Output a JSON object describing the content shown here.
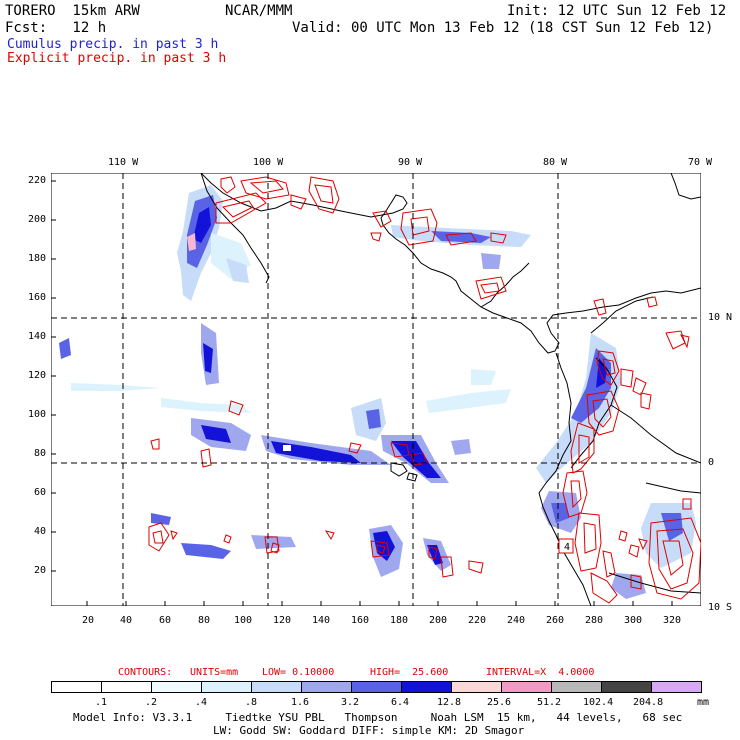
{
  "header": {
    "model": "TORERO  15km ARW",
    "org": "NCAR/MMM",
    "init": "Init: 12 UTC Sun 12 Feb 12",
    "fcst": "Fcst:   12 h",
    "valid": "Valid: 00 UTC Mon 13 Feb 12 (18 CST Sun 12 Feb 12)",
    "line_cumulus": "Cumulus precip. in past 3 h",
    "line_explicit": "Explicit precip. in past 3 h"
  },
  "colors": {
    "cumulus": "#1f1fd8",
    "explicit": "#e00000",
    "contour": "#e00000"
  },
  "map": {
    "top_lon_labels": [
      "110 W",
      "100 W",
      "90 W",
      "80 W",
      "70 W"
    ],
    "right_lat_labels": [
      "10 N",
      "0",
      "10 S"
    ],
    "y_ticks": [
      "220",
      "200",
      "180",
      "160",
      "140",
      "120",
      "100",
      "80",
      "60",
      "40",
      "20"
    ],
    "x_ticks": [
      "20",
      "40",
      "60",
      "80",
      "100",
      "120",
      "140",
      "160",
      "180",
      "200",
      "220",
      "240",
      "260",
      "280",
      "300",
      "320"
    ],
    "box_label": "4"
  },
  "contours": {
    "label": "CONTOURS:",
    "units": "UNITS=mm",
    "low": "LOW= 0.10000",
    "high": "HIGH=  25.600",
    "interval": "INTERVAL=X  4.0000"
  },
  "legend": {
    "labels": [
      ".1",
      ".2",
      ".4",
      ".8",
      "1.6",
      "3.2",
      "6.4",
      "12.8",
      "25.6",
      "51.2",
      "102.4",
      "204.8"
    ],
    "colors": [
      "#ffffff",
      "#ffffff",
      "#f0fbff",
      "#dcf2fc",
      "#c6dcf8",
      "#9fa8ef",
      "#5a63e6",
      "#1212d8",
      "#fad8d8",
      "#f499c4",
      "#b8b8b8",
      "#444444",
      "#d9a8f5"
    ],
    "units": "mm"
  },
  "footer": {
    "line1": "Model Info: V3.3.1     Tiedtke YSU PBL   Thompson     Noah LSM  15 km,   44 levels,   68 sec",
    "line2": "LW: Godd SW: Goddard DIFF: simple KM: 2D Smagor"
  }
}
